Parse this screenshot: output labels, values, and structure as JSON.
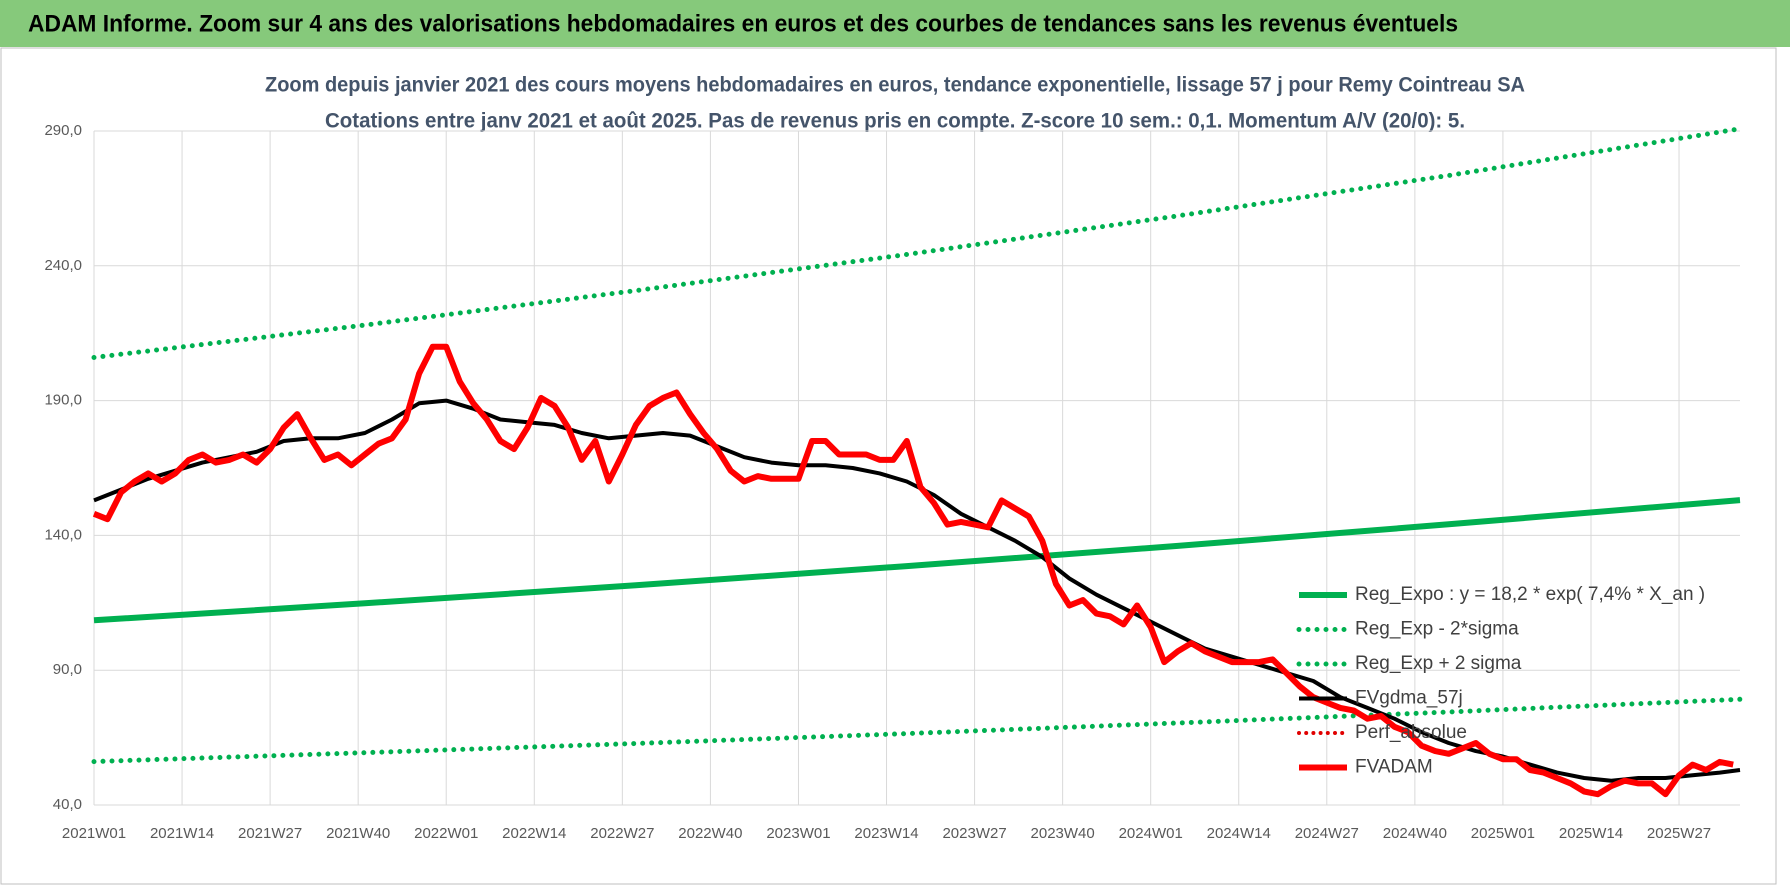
{
  "header": "ADAM Informe. Zoom sur 4 ans des valorisations hebdomadaires en euros et des courbes de tendances sans les revenus éventuels",
  "chart_data": {
    "type": "line",
    "title": "Zoom depuis janvier 2021 des cours moyens hebdomadaires en euros, tendance exponentielle, lissage 57 j pour Remy Cointreau SA",
    "subtitle": "Cotations entre janv 2021 et août 2025. Pas de revenus pris en compte. Z-score 10 sem.: 0,1. Momentum A/V (20/0): 5.",
    "xlim": [
      0,
      243
    ],
    "xticks": [
      {
        "value": 0,
        "label": "2021W01"
      },
      {
        "value": 13,
        "label": "2021W14"
      },
      {
        "value": 26,
        "label": "2021W27"
      },
      {
        "value": 39,
        "label": "2021W40"
      },
      {
        "value": 52,
        "label": "2022W01"
      },
      {
        "value": 65,
        "label": "2022W14"
      },
      {
        "value": 78,
        "label": "2022W27"
      },
      {
        "value": 91,
        "label": "2022W40"
      },
      {
        "value": 104,
        "label": "2023W01"
      },
      {
        "value": 117,
        "label": "2023W14"
      },
      {
        "value": 130,
        "label": "2023W27"
      },
      {
        "value": 143,
        "label": "2023W40"
      },
      {
        "value": 156,
        "label": "2024W01"
      },
      {
        "value": 169,
        "label": "2024W14"
      },
      {
        "value": 182,
        "label": "2024W27"
      },
      {
        "value": 195,
        "label": "2024W40"
      },
      {
        "value": 208,
        "label": "2025W01"
      },
      {
        "value": 221,
        "label": "2025W14"
      },
      {
        "value": 234,
        "label": "2025W27"
      }
    ],
    "ylim": [
      40,
      290
    ],
    "yticks": [
      {
        "value": 40,
        "label": "40,0"
      },
      {
        "value": 90,
        "label": "90,0"
      },
      {
        "value": 140,
        "label": "140,0"
      },
      {
        "value": 190,
        "label": "190,0"
      },
      {
        "value": 240,
        "label": "240,0"
      },
      {
        "value": 290,
        "label": "290,0"
      }
    ],
    "grid": true,
    "legend": "lower right",
    "series": [
      {
        "name": "Reg_Expo : y = 18,2 * exp( 7,4% *  X_an )",
        "color": "#00b050",
        "style": "solid",
        "width": 6,
        "x": [
          0,
          40,
          80,
          120,
          160,
          200,
          243
        ],
        "values": [
          108.5,
          114.8,
          121.5,
          128.6,
          136.1,
          144.1,
          153.1
        ]
      },
      {
        "name": "Reg_Exp - 2*sigma",
        "color": "#00b050",
        "style": "dotted",
        "width": 5,
        "x": [
          0,
          40,
          80,
          120,
          160,
          200,
          243
        ],
        "values": [
          56.1,
          59.4,
          62.8,
          66.5,
          70.4,
          74.5,
          79.2
        ]
      },
      {
        "name": "Reg_Exp + 2 sigma",
        "color": "#00b050",
        "style": "dotted",
        "width": 5,
        "x": [
          0,
          40,
          80,
          120,
          160,
          200,
          243
        ],
        "values": [
          206,
          218.0,
          230.8,
          244.2,
          258.5,
          273.5,
          290.8
        ]
      },
      {
        "name": "FVgdma_57j",
        "color": "#000000",
        "style": "solid",
        "width": 4,
        "x": [
          0,
          4,
          8,
          12,
          16,
          20,
          24,
          28,
          32,
          36,
          40,
          44,
          48,
          52,
          56,
          60,
          64,
          68,
          72,
          76,
          80,
          84,
          88,
          92,
          96,
          100,
          104,
          108,
          112,
          116,
          120,
          124,
          128,
          132,
          136,
          140,
          144,
          148,
          152,
          156,
          160,
          164,
          168,
          172,
          176,
          180,
          184,
          188,
          192,
          196,
          200,
          204,
          208,
          212,
          216,
          220,
          224,
          228,
          232,
          236,
          240,
          243
        ],
        "values": [
          153,
          157,
          161,
          164,
          167,
          169,
          171,
          175,
          176,
          176,
          178,
          183,
          189,
          190,
          187,
          183,
          182,
          181,
          178,
          176,
          177,
          178,
          177,
          173,
          169,
          167,
          166,
          166,
          165,
          163,
          160,
          155,
          148,
          143,
          138,
          132,
          124,
          118,
          113,
          108,
          103,
          98,
          95,
          92,
          89,
          86,
          80,
          76,
          72,
          67,
          63,
          60,
          58,
          55,
          52,
          50,
          49,
          50,
          50,
          51,
          52,
          53
        ]
      },
      {
        "name": "Perf_absolue",
        "color": "#e00000",
        "style": "dotted",
        "width": 4,
        "x": [],
        "values": []
      },
      {
        "name": "FVADAM",
        "color": "#ff0000",
        "style": "solid",
        "width": 6,
        "x": [
          0,
          2,
          4,
          6,
          8,
          10,
          12,
          14,
          16,
          18,
          20,
          22,
          24,
          26,
          28,
          30,
          32,
          34,
          36,
          38,
          40,
          42,
          44,
          46,
          48,
          50,
          52,
          54,
          56,
          58,
          60,
          62,
          64,
          66,
          68,
          70,
          72,
          74,
          76,
          78,
          80,
          82,
          84,
          86,
          88,
          90,
          92,
          94,
          96,
          98,
          100,
          102,
          104,
          106,
          108,
          110,
          112,
          114,
          116,
          118,
          120,
          122,
          124,
          126,
          128,
          130,
          132,
          134,
          136,
          138,
          140,
          142,
          144,
          146,
          148,
          150,
          152,
          154,
          156,
          158,
          160,
          162,
          164,
          166,
          168,
          170,
          172,
          174,
          176,
          178,
          180,
          182,
          184,
          186,
          188,
          190,
          192,
          194,
          196,
          198,
          200,
          202,
          204,
          206,
          208,
          210,
          212,
          214,
          216,
          218,
          220,
          222,
          224,
          226,
          228,
          230,
          232,
          234,
          236,
          238,
          240,
          242
        ],
        "values": [
          148,
          146,
          156,
          160,
          163,
          160,
          163,
          168,
          170,
          167,
          168,
          170,
          167,
          172,
          180,
          185,
          176,
          168,
          170,
          166,
          170,
          174,
          176,
          183,
          200,
          210,
          210,
          197,
          189,
          183,
          175,
          172,
          180,
          191,
          188,
          180,
          168,
          175,
          160,
          170,
          181,
          188,
          191,
          193,
          185,
          178,
          172,
          164,
          160,
          162,
          161,
          161,
          161,
          175,
          175,
          170,
          170,
          170,
          168,
          168,
          175,
          158,
          152,
          144,
          145,
          144,
          143,
          153,
          150,
          147,
          138,
          122,
          114,
          116,
          111,
          110,
          107,
          114,
          106,
          93,
          97,
          100,
          97,
          95,
          93,
          93,
          93,
          94,
          89,
          84,
          80,
          78,
          76,
          75,
          72,
          73,
          69,
          67,
          62,
          60,
          59,
          61,
          63,
          59,
          57,
          57,
          53,
          52,
          50,
          48,
          45,
          44,
          47,
          49,
          48,
          48,
          44,
          51,
          55,
          53,
          56,
          55
        ]
      }
    ]
  }
}
